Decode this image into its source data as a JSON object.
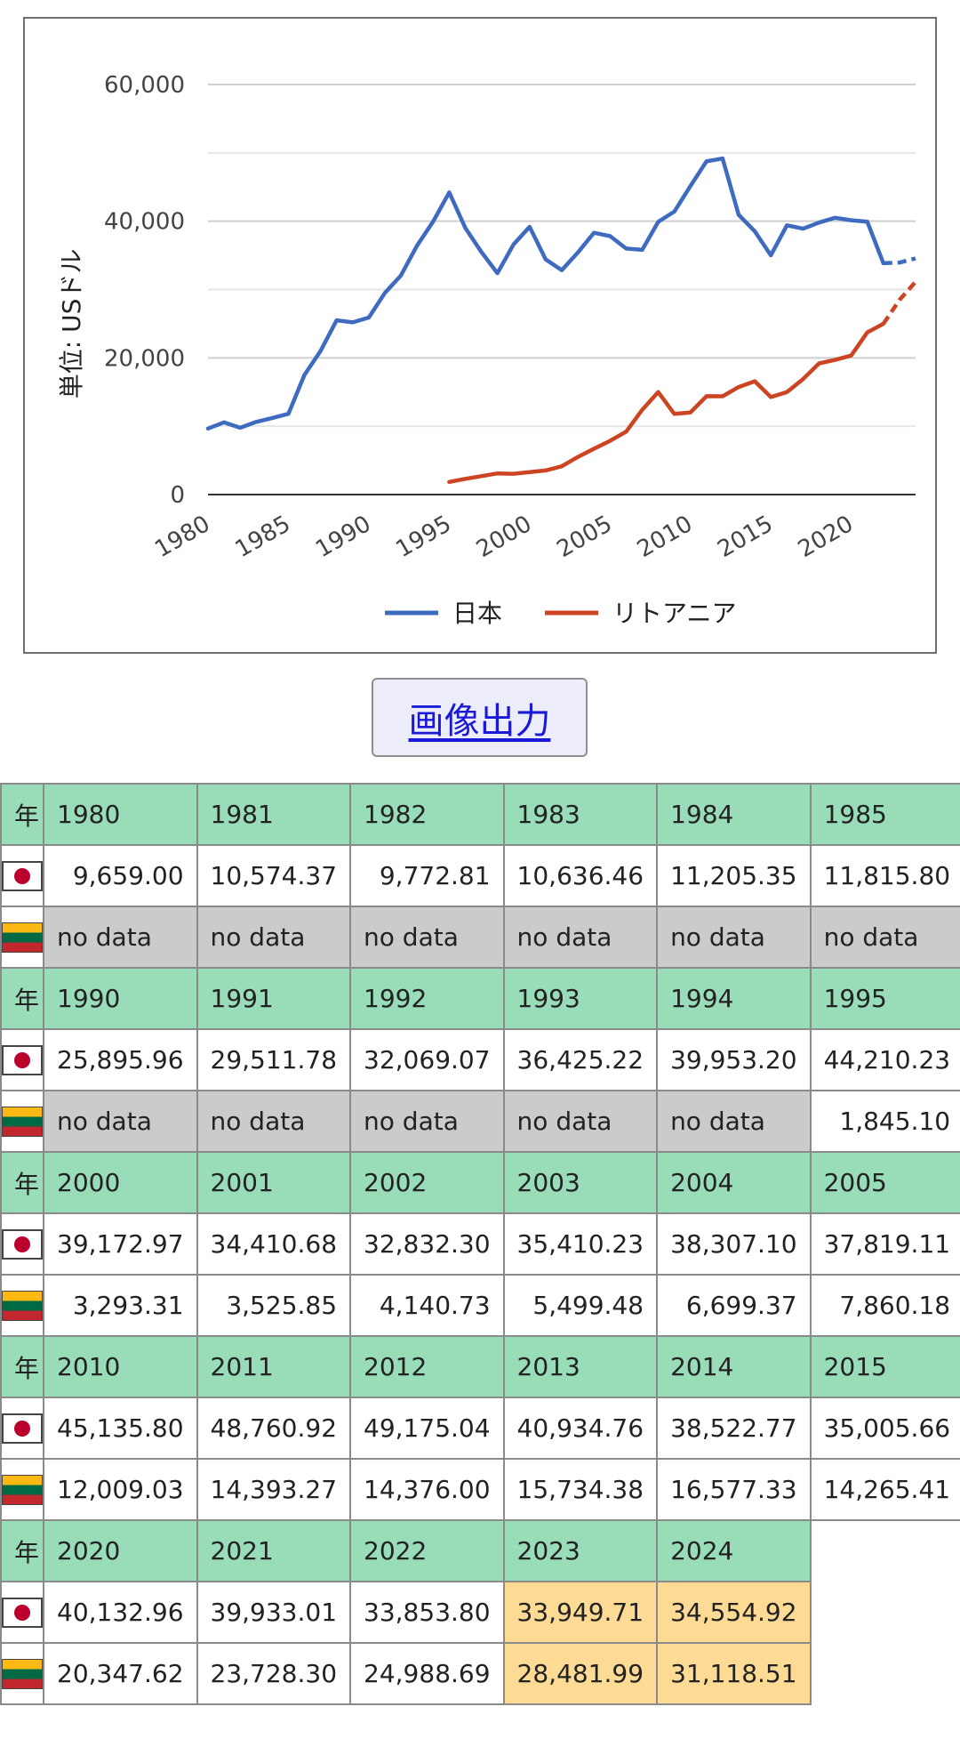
{
  "chart_data": {
    "type": "line",
    "ylabel": "単位: USドル",
    "xlabel": "",
    "title": "",
    "ylim": [
      0,
      60000
    ],
    "xlim": [
      1980,
      2024
    ],
    "yticks": [
      "0",
      "20,000",
      "40,000",
      "60,000"
    ],
    "xticks": [
      "1980",
      "1985",
      "1990",
      "1995",
      "2000",
      "2005",
      "2010",
      "2015",
      "2020"
    ],
    "legend_position": "bottom",
    "estimate_from_year": 2023,
    "series": [
      {
        "name": "日本",
        "color": "#3e6bc0",
        "x": [
          1980,
          1981,
          1982,
          1983,
          1984,
          1985,
          1986,
          1987,
          1988,
          1989,
          1990,
          1991,
          1992,
          1993,
          1994,
          1995,
          1996,
          1997,
          1998,
          1999,
          2000,
          2001,
          2002,
          2003,
          2004,
          2005,
          2006,
          2007,
          2008,
          2009,
          2010,
          2011,
          2012,
          2013,
          2014,
          2015,
          2016,
          2017,
          2018,
          2019,
          2020,
          2021,
          2022,
          2023,
          2024
        ],
        "values": [
          9659.0,
          10574.37,
          9772.81,
          10636.46,
          11205.35,
          11815.8,
          17500,
          21000,
          25500,
          25200,
          25895.96,
          29511.78,
          32069.07,
          36425.22,
          39953.2,
          44210.23,
          39000,
          35500,
          32400,
          36600,
          39172.97,
          34410.68,
          32832.3,
          35410.23,
          38307.1,
          37819.11,
          36000,
          35800,
          39900,
          41400,
          45135.8,
          48760.92,
          49175.04,
          40934.76,
          38522.77,
          35005.66,
          39400,
          38900,
          39800,
          40500,
          40132.96,
          39933.01,
          33853.8,
          33949.71,
          34554.92
        ]
      },
      {
        "name": "リトアニア",
        "color": "#cc4422",
        "x": [
          1995,
          1996,
          1997,
          1998,
          1999,
          2000,
          2001,
          2002,
          2003,
          2004,
          2005,
          2006,
          2007,
          2008,
          2009,
          2010,
          2011,
          2012,
          2013,
          2014,
          2015,
          2016,
          2017,
          2018,
          2019,
          2020,
          2021,
          2022,
          2023,
          2024
        ],
        "values": [
          1845.1,
          2300,
          2700,
          3100,
          3050,
          3293.31,
          3525.85,
          4140.73,
          5499.48,
          6699.37,
          7860.18,
          9200,
          12400,
          15000,
          11800,
          12009.03,
          14393.27,
          14376.0,
          15734.38,
          16577.33,
          14265.41,
          15000,
          16900,
          19200,
          19700,
          20347.62,
          23728.3,
          24988.69,
          28481.99,
          31118.51
        ]
      }
    ]
  },
  "export_button": {
    "label": "画像出力"
  },
  "table": {
    "header_label": "年",
    "blocks": [
      {
        "years": [
          "1980",
          "1981",
          "1982",
          "1983",
          "1984",
          "1985"
        ],
        "japan": [
          "9,659.00",
          "10,574.37",
          "9,772.81",
          "10,636.46",
          "11,205.35",
          "11,815.80"
        ],
        "lithuania": [
          "no data",
          "no data",
          "no data",
          "no data",
          "no data",
          "no data"
        ]
      },
      {
        "years": [
          "1990",
          "1991",
          "1992",
          "1993",
          "1994",
          "1995"
        ],
        "japan": [
          "25,895.96",
          "29,511.78",
          "32,069.07",
          "36,425.22",
          "39,953.20",
          "44,210.23"
        ],
        "lithuania": [
          "no data",
          "no data",
          "no data",
          "no data",
          "no data",
          "1,845.10"
        ]
      },
      {
        "years": [
          "2000",
          "2001",
          "2002",
          "2003",
          "2004",
          "2005"
        ],
        "japan": [
          "39,172.97",
          "34,410.68",
          "32,832.30",
          "35,410.23",
          "38,307.10",
          "37,819.11"
        ],
        "lithuania": [
          "3,293.31",
          "3,525.85",
          "4,140.73",
          "5,499.48",
          "6,699.37",
          "7,860.18"
        ]
      },
      {
        "years": [
          "2010",
          "2011",
          "2012",
          "2013",
          "2014",
          "2015"
        ],
        "japan": [
          "45,135.80",
          "48,760.92",
          "49,175.04",
          "40,934.76",
          "38,522.77",
          "35,005.66"
        ],
        "lithuania": [
          "12,009.03",
          "14,393.27",
          "14,376.00",
          "15,734.38",
          "16,577.33",
          "14,265.41"
        ]
      },
      {
        "years": [
          "2020",
          "2021",
          "2022",
          "2023",
          "2024"
        ],
        "japan": [
          "40,132.96",
          "39,933.01",
          "33,853.80",
          "33,949.71",
          "34,554.92"
        ],
        "lithuania": [
          "20,347.62",
          "23,728.30",
          "24,988.69",
          "28,481.99",
          "31,118.51"
        ],
        "estimated_cols": [
          3,
          4
        ]
      }
    ],
    "colors": {
      "year_row": "#99dcb8",
      "no_data": "#cbcbcb",
      "estimate": "#fedb95"
    }
  }
}
